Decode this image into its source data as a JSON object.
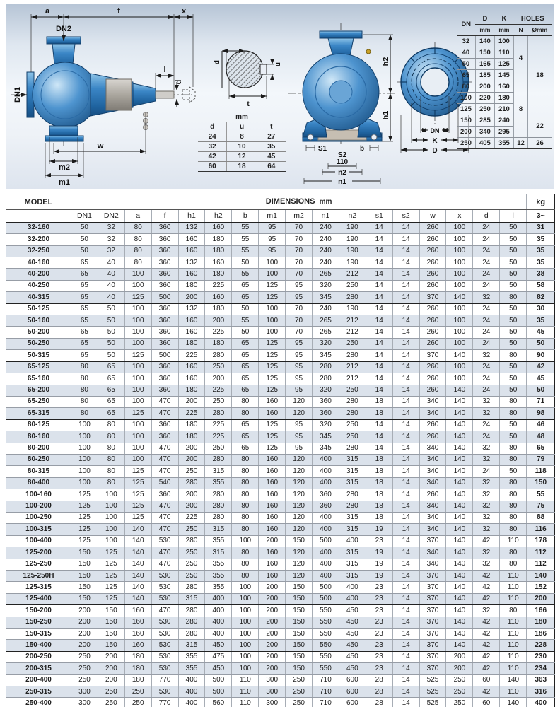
{
  "top": {
    "side_view": {
      "labels": {
        "a": "a",
        "f": "f",
        "x": "x",
        "dn2": "DN2",
        "dn1": "DN1",
        "l": "l",
        "d": "d",
        "w": "w",
        "m2": "m2",
        "m1": "m1"
      }
    },
    "shaft_section": {
      "labels": {
        "d": "d",
        "u": "u",
        "t": "t"
      }
    },
    "shaft_table": {
      "unit": "mm",
      "columns": [
        "d",
        "u",
        "t"
      ],
      "rows": [
        [
          "24",
          "8",
          "27"
        ],
        [
          "32",
          "10",
          "35"
        ],
        [
          "42",
          "12",
          "45"
        ],
        [
          "60",
          "18",
          "64"
        ]
      ]
    },
    "front_view": {
      "labels": {
        "h2": "h2",
        "h1": "h1",
        "s1": "S1",
        "s2": "S2",
        "s2_value": "110",
        "n2": "n2",
        "n1": "n1",
        "b": "b"
      }
    },
    "flange_view": {
      "labels": {
        "dn": "DN",
        "k": "K",
        "d": "D"
      }
    },
    "flange_table": {
      "col_dn": "DN",
      "col_d": "D",
      "col_k": "K",
      "col_holes": "HOLES",
      "unit_mm": "mm",
      "col_n": "N",
      "col_dia": "Ømm",
      "rows": [
        [
          "32",
          "140",
          "100"
        ],
        [
          "40",
          "150",
          "110"
        ],
        [
          "50",
          "165",
          "125"
        ],
        [
          "65",
          "185",
          "145"
        ],
        [
          "80",
          "200",
          "160"
        ],
        [
          "100",
          "220",
          "180"
        ],
        [
          "125",
          "250",
          "210"
        ],
        [
          "150",
          "285",
          "240"
        ],
        [
          "200",
          "340",
          "295"
        ],
        [
          "250",
          "405",
          "355"
        ]
      ],
      "n_groups": [
        {
          "value": "4",
          "span": 4
        },
        {
          "value": "8",
          "span": 5
        },
        {
          "value": "12",
          "span": 1
        }
      ],
      "dia_groups": [
        {
          "value": "18",
          "span": 7
        },
        {
          "value": "22",
          "span": 2
        },
        {
          "value": "26",
          "span": 1
        }
      ]
    }
  },
  "main_table": {
    "model_header": "MODEL",
    "dims_header": "DIMENSIONS",
    "dims_unit": "mm",
    "kg_header": "kg",
    "kg_sub": "3~",
    "columns": [
      "DN1",
      "DN2",
      "a",
      "f",
      "h1",
      "h2",
      "b",
      "m1",
      "m2",
      "n1",
      "n2",
      "s1",
      "s2",
      "w",
      "x",
      "d",
      "l"
    ],
    "group_end_models": [
      "32-250",
      "40-315",
      "50-315",
      "65-315",
      "80-400",
      "100-400",
      "125-400",
      "150-400",
      "200-400"
    ],
    "rows": [
      {
        "model": "32-160",
        "values": [
          50,
          32,
          80,
          360,
          132,
          160,
          55,
          95,
          70,
          240,
          190,
          14,
          14,
          260,
          100,
          24,
          50
        ],
        "kg": "31"
      },
      {
        "model": "32-200",
        "values": [
          50,
          32,
          80,
          360,
          160,
          180,
          55,
          95,
          70,
          240,
          190,
          14,
          14,
          260,
          100,
          24,
          50
        ],
        "kg": "35"
      },
      {
        "model": "32-250",
        "values": [
          50,
          32,
          80,
          360,
          160,
          180,
          55,
          95,
          70,
          240,
          190,
          14,
          14,
          260,
          100,
          24,
          50
        ],
        "kg": "35"
      },
      {
        "model": "40-160",
        "values": [
          65,
          40,
          80,
          360,
          132,
          160,
          50,
          100,
          70,
          240,
          190,
          14,
          14,
          260,
          100,
          24,
          50
        ],
        "kg": "35"
      },
      {
        "model": "40-200",
        "values": [
          65,
          40,
          100,
          360,
          160,
          180,
          55,
          100,
          70,
          265,
          212,
          14,
          14,
          260,
          100,
          24,
          50
        ],
        "kg": "38"
      },
      {
        "model": "40-250",
        "values": [
          65,
          40,
          100,
          360,
          180,
          225,
          65,
          125,
          95,
          320,
          250,
          14,
          14,
          260,
          100,
          24,
          50
        ],
        "kg": "58"
      },
      {
        "model": "40-315",
        "values": [
          65,
          40,
          125,
          500,
          200,
          160,
          65,
          125,
          95,
          345,
          280,
          14,
          14,
          370,
          140,
          32,
          80
        ],
        "kg": "82"
      },
      {
        "model": "50-125",
        "values": [
          65,
          50,
          100,
          360,
          132,
          180,
          50,
          100,
          70,
          240,
          190,
          14,
          14,
          260,
          100,
          24,
          50
        ],
        "kg": "30"
      },
      {
        "model": "50-160",
        "values": [
          65,
          50,
          100,
          360,
          160,
          200,
          55,
          100,
          70,
          265,
          212,
          14,
          14,
          260,
          100,
          24,
          50
        ],
        "kg": "35"
      },
      {
        "model": "50-200",
        "values": [
          65,
          50,
          100,
          360,
          160,
          225,
          50,
          100,
          70,
          265,
          212,
          14,
          14,
          260,
          100,
          24,
          50
        ],
        "kg": "45"
      },
      {
        "model": "50-250",
        "values": [
          65,
          50,
          100,
          360,
          180,
          180,
          65,
          125,
          95,
          320,
          250,
          14,
          14,
          260,
          100,
          24,
          50
        ],
        "kg": "50"
      },
      {
        "model": "50-315",
        "values": [
          65,
          50,
          125,
          500,
          225,
          280,
          65,
          125,
          95,
          345,
          280,
          14,
          14,
          370,
          140,
          32,
          80
        ],
        "kg": "90"
      },
      {
        "model": "65-125",
        "values": [
          80,
          65,
          100,
          360,
          160,
          250,
          65,
          125,
          95,
          280,
          212,
          14,
          14,
          260,
          100,
          24,
          50
        ],
        "kg": "42"
      },
      {
        "model": "65-160",
        "values": [
          80,
          65,
          100,
          360,
          160,
          200,
          65,
          125,
          95,
          280,
          212,
          14,
          14,
          260,
          100,
          24,
          50
        ],
        "kg": "45"
      },
      {
        "model": "65-200",
        "values": [
          80,
          65,
          100,
          360,
          180,
          225,
          65,
          125,
          95,
          320,
          250,
          14,
          14,
          260,
          140,
          24,
          50
        ],
        "kg": "50"
      },
      {
        "model": "65-250",
        "values": [
          80,
          65,
          100,
          470,
          200,
          250,
          80,
          160,
          120,
          360,
          280,
          18,
          14,
          340,
          140,
          32,
          80
        ],
        "kg": "71"
      },
      {
        "model": "65-315",
        "values": [
          80,
          65,
          125,
          470,
          225,
          280,
          80,
          160,
          120,
          360,
          280,
          18,
          14,
          340,
          140,
          32,
          80
        ],
        "kg": "98"
      },
      {
        "model": "80-125",
        "values": [
          100,
          80,
          100,
          360,
          180,
          225,
          65,
          125,
          95,
          320,
          250,
          14,
          14,
          260,
          140,
          24,
          50
        ],
        "kg": "46"
      },
      {
        "model": "80-160",
        "values": [
          100,
          80,
          100,
          360,
          180,
          225,
          65,
          125,
          95,
          345,
          250,
          14,
          14,
          260,
          140,
          24,
          50
        ],
        "kg": "48"
      },
      {
        "model": "80-200",
        "values": [
          100,
          80,
          100,
          470,
          200,
          250,
          65,
          125,
          95,
          345,
          280,
          14,
          14,
          340,
          140,
          32,
          80
        ],
        "kg": "65"
      },
      {
        "model": "80-250",
        "values": [
          100,
          80,
          100,
          470,
          200,
          280,
          80,
          160,
          120,
          400,
          315,
          18,
          14,
          340,
          140,
          32,
          80
        ],
        "kg": "79"
      },
      {
        "model": "80-315",
        "values": [
          100,
          80,
          125,
          470,
          250,
          315,
          80,
          160,
          120,
          400,
          315,
          18,
          14,
          340,
          140,
          24,
          50
        ],
        "kg": "118"
      },
      {
        "model": "80-400",
        "values": [
          100,
          80,
          125,
          540,
          280,
          355,
          80,
          160,
          120,
          400,
          315,
          18,
          14,
          340,
          140,
          32,
          80
        ],
        "kg": "150"
      },
      {
        "model": "100-160",
        "values": [
          125,
          100,
          125,
          360,
          200,
          280,
          80,
          160,
          120,
          360,
          280,
          18,
          14,
          260,
          140,
          32,
          80
        ],
        "kg": "55"
      },
      {
        "model": "100-200",
        "values": [
          125,
          100,
          125,
          470,
          200,
          280,
          80,
          160,
          120,
          360,
          280,
          18,
          14,
          340,
          140,
          32,
          80
        ],
        "kg": "75"
      },
      {
        "model": "100-250",
        "values": [
          125,
          100,
          125,
          470,
          225,
          280,
          80,
          160,
          120,
          400,
          315,
          18,
          14,
          340,
          140,
          32,
          80
        ],
        "kg": "88"
      },
      {
        "model": "100-315",
        "values": [
          125,
          100,
          140,
          470,
          250,
          315,
          80,
          160,
          120,
          400,
          315,
          19,
          14,
          340,
          140,
          32,
          80
        ],
        "kg": "116"
      },
      {
        "model": "100-400",
        "values": [
          125,
          100,
          140,
          530,
          280,
          355,
          100,
          200,
          150,
          500,
          400,
          23,
          14,
          370,
          140,
          42,
          110
        ],
        "kg": "178"
      },
      {
        "model": "125-200",
        "values": [
          150,
          125,
          140,
          470,
          250,
          315,
          80,
          160,
          120,
          400,
          315,
          19,
          14,
          340,
          140,
          32,
          80
        ],
        "kg": "112"
      },
      {
        "model": "125-250",
        "values": [
          150,
          125,
          140,
          470,
          250,
          355,
          80,
          160,
          120,
          400,
          315,
          19,
          14,
          340,
          140,
          32,
          80
        ],
        "kg": "112"
      },
      {
        "model": "125-250H",
        "values": [
          150,
          125,
          140,
          530,
          250,
          355,
          80,
          160,
          120,
          400,
          315,
          19,
          14,
          370,
          140,
          42,
          110
        ],
        "kg": "140"
      },
      {
        "model": "125-315",
        "values": [
          150,
          125,
          140,
          530,
          280,
          355,
          100,
          200,
          150,
          500,
          400,
          23,
          14,
          370,
          140,
          42,
          110
        ],
        "kg": "152"
      },
      {
        "model": "125-400",
        "values": [
          150,
          125,
          140,
          530,
          315,
          400,
          100,
          200,
          150,
          500,
          400,
          23,
          14,
          370,
          140,
          42,
          110
        ],
        "kg": "200"
      },
      {
        "model": "150-200",
        "values": [
          200,
          150,
          160,
          470,
          280,
          400,
          100,
          200,
          150,
          550,
          450,
          23,
          14,
          370,
          140,
          32,
          80
        ],
        "kg": "166"
      },
      {
        "model": "150-250",
        "values": [
          200,
          150,
          160,
          530,
          280,
          400,
          100,
          200,
          150,
          550,
          450,
          23,
          14,
          370,
          140,
          42,
          110
        ],
        "kg": "180"
      },
      {
        "model": "150-315",
        "values": [
          200,
          150,
          160,
          530,
          280,
          400,
          100,
          200,
          150,
          550,
          450,
          23,
          14,
          370,
          140,
          42,
          110
        ],
        "kg": "186"
      },
      {
        "model": "150-400",
        "values": [
          200,
          150,
          160,
          530,
          315,
          450,
          100,
          200,
          150,
          550,
          450,
          23,
          14,
          370,
          140,
          42,
          110
        ],
        "kg": "228"
      },
      {
        "model": "200-250",
        "values": [
          250,
          200,
          180,
          530,
          355,
          475,
          100,
          200,
          150,
          550,
          450,
          23,
          14,
          370,
          200,
          42,
          110
        ],
        "kg": "230"
      },
      {
        "model": "200-315",
        "values": [
          250,
          200,
          180,
          530,
          355,
          450,
          100,
          200,
          150,
          550,
          450,
          23,
          14,
          370,
          200,
          42,
          110
        ],
        "kg": "234"
      },
      {
        "model": "200-400",
        "values": [
          250,
          200,
          180,
          770,
          400,
          500,
          110,
          300,
          250,
          710,
          600,
          28,
          14,
          525,
          250,
          60,
          140
        ],
        "kg": "363"
      },
      {
        "model": "250-315",
        "values": [
          300,
          250,
          250,
          530,
          400,
          500,
          110,
          300,
          250,
          710,
          600,
          28,
          14,
          525,
          250,
          42,
          110
        ],
        "kg": "316"
      },
      {
        "model": "250-400",
        "values": [
          300,
          250,
          250,
          770,
          400,
          560,
          110,
          300,
          250,
          710,
          600,
          28,
          14,
          525,
          250,
          60,
          140
        ],
        "kg": "400"
      }
    ]
  },
  "colors": {
    "pump_blue": "#3b86c6",
    "pump_dark": "#1b578f",
    "row_shade": "#dbe2eb"
  }
}
